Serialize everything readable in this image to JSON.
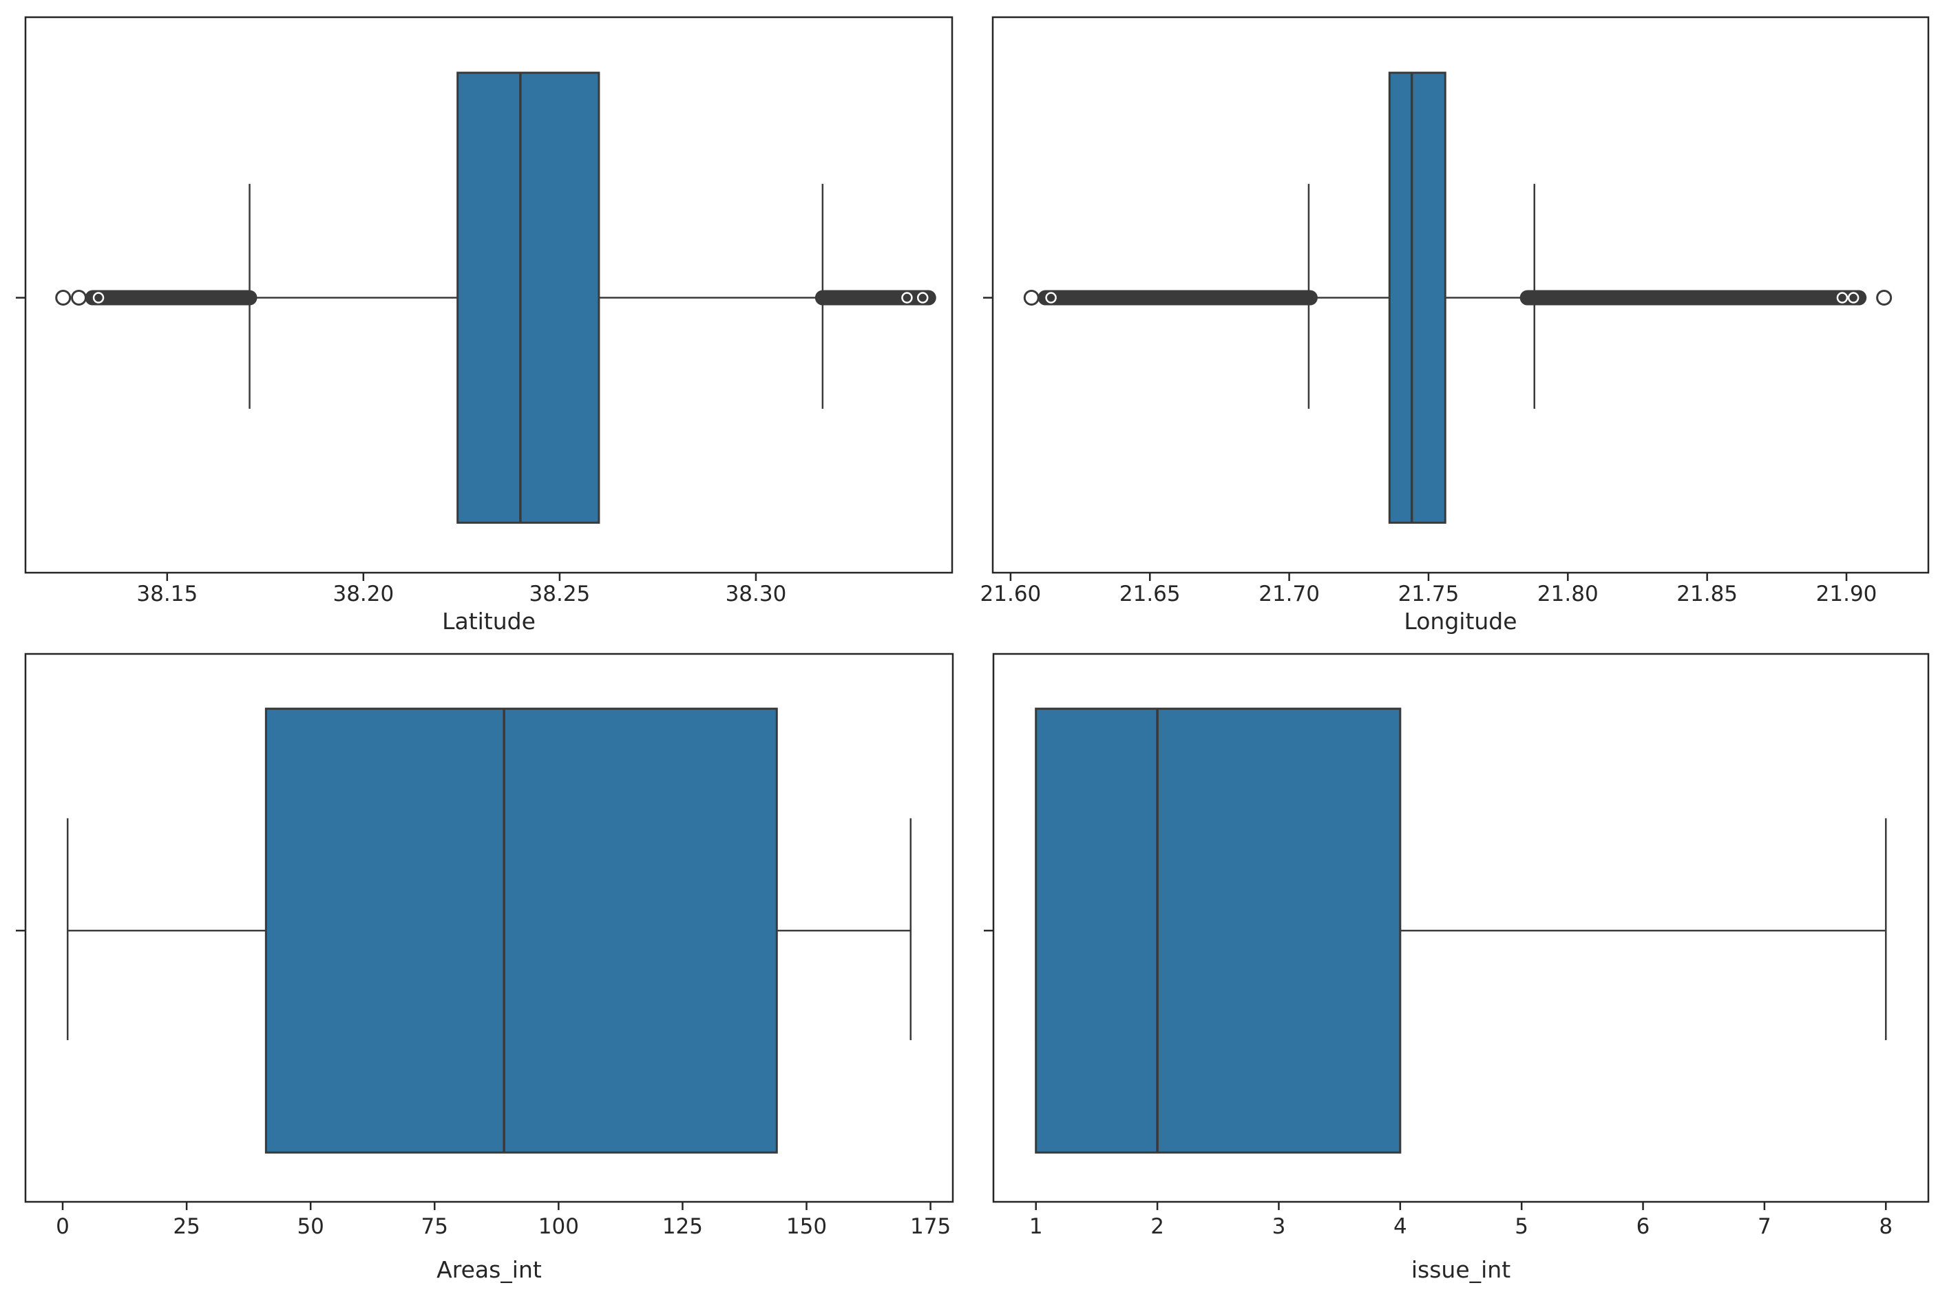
{
  "figure": {
    "background": "#ffffff",
    "title": ""
  },
  "style": {
    "box_fill": "#3274a1",
    "line_color": "#3a3a3a",
    "spine_color": "#262626",
    "text_color": "#262626"
  },
  "chart_data": [
    {
      "type": "box",
      "orientation": "horizontal",
      "xlabel": "Latitude",
      "xlim": [
        38.1139,
        38.35
      ],
      "ticks": [
        38.15,
        38.2,
        38.25,
        38.3
      ],
      "tick_labels": [
        "38.15",
        "38.20",
        "38.25",
        "38.30"
      ],
      "stats": {
        "whisker_low": 38.171,
        "q1": 38.224,
        "median": 38.24,
        "q3": 38.26,
        "whisker_high": 38.317
      },
      "outlier_clusters": [
        {
          "from": 38.131,
          "to": 38.171
        },
        {
          "from": 38.317,
          "to": 38.344
        }
      ],
      "outlier_rings": [
        38.1235,
        38.1275,
        38.1325,
        38.3385,
        38.3425
      ]
    },
    {
      "type": "box",
      "orientation": "horizontal",
      "xlabel": "Longitude",
      "xlim": [
        21.5936,
        21.9294
      ],
      "ticks": [
        21.6,
        21.65,
        21.7,
        21.75,
        21.8,
        21.85,
        21.9
      ],
      "tick_labels": [
        "21.60",
        "21.65",
        "21.70",
        "21.75",
        "21.80",
        "21.85",
        "21.90"
      ],
      "stats": {
        "whisker_low": 21.707,
        "q1": 21.736,
        "median": 21.744,
        "q3": 21.756,
        "whisker_high": 21.788
      },
      "outlier_clusters": [
        {
          "from": 21.6125,
          "to": 21.7075
        },
        {
          "from": 21.7855,
          "to": 21.9045
        }
      ],
      "outlier_rings": [
        21.6075,
        21.6145,
        21.8985,
        21.9025,
        21.9135
      ]
    },
    {
      "type": "box",
      "orientation": "horizontal",
      "xlabel": "Areas_int",
      "xlim": [
        -7.5,
        179.5
      ],
      "ticks": [
        0,
        25,
        50,
        75,
        100,
        125,
        150,
        175
      ],
      "tick_labels": [
        "0",
        "25",
        "50",
        "75",
        "100",
        "125",
        "150",
        "175"
      ],
      "stats": {
        "whisker_low": 1,
        "q1": 41,
        "median": 89,
        "q3": 144,
        "whisker_high": 171
      },
      "outlier_clusters": [],
      "outlier_rings": []
    },
    {
      "type": "box",
      "orientation": "horizontal",
      "xlabel": "issue_int",
      "xlim": [
        0.65,
        8.35
      ],
      "ticks": [
        1,
        2,
        3,
        4,
        5,
        6,
        7,
        8
      ],
      "tick_labels": [
        "1",
        "2",
        "3",
        "4",
        "5",
        "6",
        "7",
        "8"
      ],
      "stats": {
        "whisker_low": 1,
        "q1": 1,
        "median": 2,
        "q3": 4,
        "whisker_high": 8
      },
      "outlier_clusters": [],
      "outlier_rings": []
    }
  ]
}
